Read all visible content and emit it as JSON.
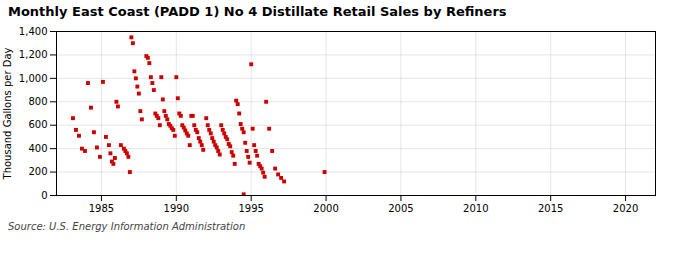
{
  "chart_data": {
    "type": "scatter",
    "title": "Monthly East Coast (PADD 1) No 4 Distillate Retail Sales by Refiners",
    "ylabel": "Thousand Gallons per Day",
    "caption": "Source: U.S. Energy Information Administration",
    "color": "#cc0000",
    "marker": "square",
    "grid": true,
    "xlim": [
      1982,
      2022
    ],
    "ylim": [
      0,
      1400
    ],
    "xticks": [
      1985,
      1990,
      1995,
      2000,
      2005,
      2010,
      2015,
      2020
    ],
    "yticks": [
      0,
      200,
      400,
      600,
      800,
      {
        "value": 1000,
        "label": "1,000"
      },
      {
        "value": 1200,
        "label": "1,200"
      },
      {
        "value": 1400,
        "label": "1,400"
      }
    ],
    "x": [
      1983.1,
      1983.3,
      1983.5,
      1983.7,
      1983.9,
      1984.1,
      1984.3,
      1984.5,
      1984.7,
      1984.9,
      1985.1,
      1985.3,
      1985.5,
      1985.6,
      1985.7,
      1985.8,
      1985.9,
      1986.0,
      1986.1,
      1986.3,
      1986.5,
      1986.6,
      1986.7,
      1986.8,
      1986.9,
      1987.0,
      1987.1,
      1987.2,
      1987.3,
      1987.4,
      1987.5,
      1987.6,
      1987.7,
      1988.0,
      1988.1,
      1988.2,
      1988.3,
      1988.4,
      1988.5,
      1988.6,
      1988.7,
      1988.8,
      1988.9,
      1989.0,
      1989.1,
      1989.2,
      1989.3,
      1989.4,
      1989.5,
      1989.6,
      1989.7,
      1989.8,
      1989.9,
      1990.0,
      1990.1,
      1990.2,
      1990.3,
      1990.4,
      1990.5,
      1990.6,
      1990.7,
      1990.8,
      1990.9,
      1991.0,
      1991.1,
      1991.2,
      1991.3,
      1991.4,
      1991.5,
      1991.6,
      1991.7,
      1991.8,
      1992.0,
      1992.1,
      1992.2,
      1992.3,
      1992.4,
      1992.5,
      1992.6,
      1992.7,
      1992.8,
      1992.9,
      1993.0,
      1993.1,
      1993.2,
      1993.3,
      1993.4,
      1993.5,
      1993.6,
      1993.7,
      1993.8,
      1993.9,
      1994.0,
      1994.1,
      1994.2,
      1994.3,
      1994.4,
      1994.5,
      1994.6,
      1994.7,
      1994.8,
      1994.9,
      1995.0,
      1995.1,
      1995.2,
      1995.3,
      1995.4,
      1995.5,
      1995.6,
      1995.7,
      1995.8,
      1995.9,
      1996.0,
      1996.2,
      1996.4,
      1996.6,
      1996.8,
      1997.0,
      1997.2,
      1994.5,
      1999.9
    ],
    "values": [
      660,
      560,
      510,
      400,
      380,
      960,
      750,
      540,
      410,
      330,
      970,
      500,
      430,
      360,
      290,
      270,
      320,
      800,
      760,
      430,
      400,
      380,
      360,
      330,
      200,
      1350,
      1300,
      1060,
      1000,
      930,
      870,
      720,
      650,
      1190,
      1175,
      1130,
      1010,
      960,
      900,
      700,
      680,
      660,
      600,
      1010,
      820,
      720,
      680,
      650,
      610,
      595,
      575,
      560,
      510,
      1010,
      830,
      700,
      680,
      600,
      580,
      555,
      530,
      510,
      430,
      680,
      680,
      600,
      560,
      540,
      490,
      460,
      430,
      390,
      660,
      600,
      560,
      530,
      490,
      460,
      430,
      410,
      380,
      350,
      600,
      560,
      530,
      500,
      480,
      440,
      420,
      370,
      340,
      270,
      810,
      780,
      700,
      610,
      570,
      540,
      450,
      380,
      330,
      280,
      1120,
      570,
      430,
      380,
      340,
      270,
      250,
      230,
      195,
      160,
      800,
      570,
      380,
      230,
      180,
      150,
      120,
      10,
      200
    ]
  }
}
